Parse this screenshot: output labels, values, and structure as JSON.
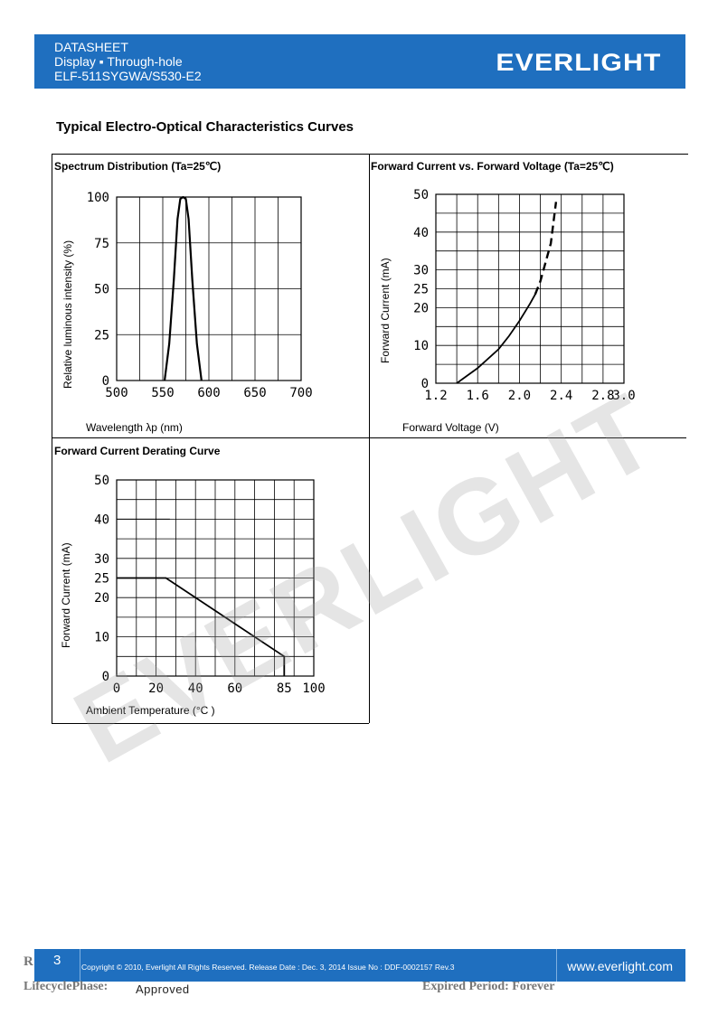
{
  "header": {
    "line1": "DATASHEET",
    "line2": "Display ▪ Through-hole",
    "line3": "ELF-511SYGWA/S530-E2",
    "logo": "EVERLIGHT"
  },
  "section_title": "Typical Electro-Optical Characteristics Curves",
  "watermark": "EVERLIGHT",
  "panels": {
    "spectrum": {
      "title": "Spectrum Distribution (Ta=25℃)",
      "ylabel": "Relative luminous intensity (%)",
      "xlabel": "Wavelength λp (nm)",
      "yticks": [
        "0",
        "25",
        "50",
        "75",
        "100"
      ],
      "xticks": [
        "500",
        "550",
        "600",
        "650",
        "700"
      ]
    },
    "ivcurve": {
      "title": "Forward Current vs. Forward Voltage (Ta=25℃)",
      "ylabel": "Forward Current (mA)",
      "xlabel": "Forward Voltage (V)",
      "yticks": [
        "0",
        "10",
        "20",
        "25",
        "30",
        "40",
        "50"
      ],
      "xticks": [
        "1.2",
        "1.6",
        "2.0",
        "2.4",
        "2.8",
        "3.0"
      ]
    },
    "derating": {
      "title": "Forward Current Derating Curve",
      "ylabel": "Forward Current (mA)",
      "xlabel": "Ambient Temperature (°C )",
      "yticks": [
        "0",
        "10",
        "20",
        "25",
        "30",
        "40",
        "50"
      ],
      "xticks": [
        "0",
        "20",
        "40",
        "60",
        "85",
        "100"
      ]
    }
  },
  "chart_data": [
    {
      "type": "line",
      "title": "Spectrum Distribution (Ta=25℃)",
      "xlabel": "Wavelength λp (nm)",
      "ylabel": "Relative luminous intensity (%)",
      "xlim": [
        500,
        700
      ],
      "ylim": [
        0,
        100
      ],
      "grid": true,
      "series": [
        {
          "x": [
            552,
            557,
            562,
            566,
            569,
            572,
            575,
            578,
            582,
            587,
            592
          ],
          "y": [
            0,
            20,
            55,
            88,
            99,
            100,
            99,
            88,
            55,
            20,
            0
          ]
        }
      ]
    },
    {
      "type": "line",
      "title": "Forward Current vs. Forward Voltage (Ta=25℃)",
      "xlabel": "Forward Voltage (V)",
      "ylabel": "Forward Current (mA)",
      "xlim": [
        1.2,
        3.0
      ],
      "ylim": [
        0,
        50
      ],
      "grid": true,
      "series": [
        {
          "x": [
            1.4,
            1.6,
            1.8,
            1.9,
            2.0,
            2.1,
            2.15,
            2.2,
            2.3,
            2.35
          ],
          "y": [
            0,
            4,
            9,
            12.5,
            16.5,
            21,
            23.5,
            27,
            37,
            48
          ],
          "dashed_from_x": 2.15
        }
      ]
    },
    {
      "type": "line",
      "title": "Forward Current Derating Curve",
      "xlabel": "Ambient Temperature (°C )",
      "ylabel": "Forward Current (mA)",
      "xlim": [
        0,
        100
      ],
      "ylim": [
        0,
        50
      ],
      "grid": true,
      "series": [
        {
          "x": [
            0,
            25,
            85,
            85
          ],
          "y": [
            25,
            25,
            5,
            0
          ]
        }
      ],
      "reference_line": {
        "x": [
          0,
          27
        ],
        "y": [
          40,
          40
        ]
      }
    }
  ],
  "footer": {
    "r": "R",
    "page": "3",
    "copyright": "Copyright © 2010, Everlight All Rights Reserved. Release Date : Dec. 3, 2014 Issue No : DDF-0002157 Rev.3",
    "website": "www.everlight.com",
    "lifecycle": "LifecyclePhase:",
    "approved": "Approved",
    "expired": "Expired Period: Forever"
  }
}
